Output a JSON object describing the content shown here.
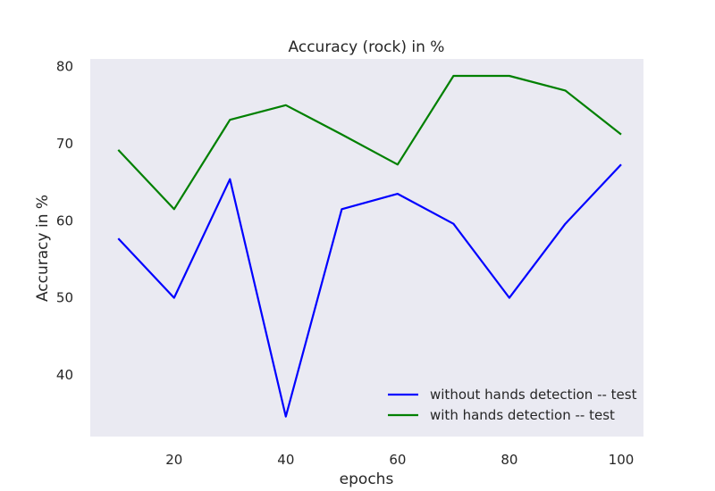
{
  "chart_data": {
    "type": "line",
    "title": "Accuracy (rock)  in %",
    "xlabel": "epochs",
    "ylabel": "Accuracy in %",
    "x": [
      10,
      20,
      30,
      40,
      50,
      60,
      70,
      80,
      90,
      100
    ],
    "xlim": [
      5,
      104
    ],
    "ylim": [
      32,
      81
    ],
    "xticks": [
      20,
      40,
      60,
      80,
      100
    ],
    "yticks": [
      40,
      50,
      60,
      70,
      80
    ],
    "grid": false,
    "legend_position": "lower-right",
    "background_color": "#EAEAF2",
    "series": [
      {
        "name": "without hands detection -- test",
        "color": "#0000ff",
        "values": [
          57.7,
          50.0,
          65.4,
          34.6,
          61.5,
          63.5,
          59.6,
          50.0,
          59.6,
          67.3
        ]
      },
      {
        "name": "with hands detection -- test",
        "color": "#008000",
        "values": [
          69.2,
          61.5,
          73.1,
          75.0,
          71.2,
          67.3,
          78.8,
          78.8,
          76.9,
          71.2
        ]
      }
    ]
  }
}
